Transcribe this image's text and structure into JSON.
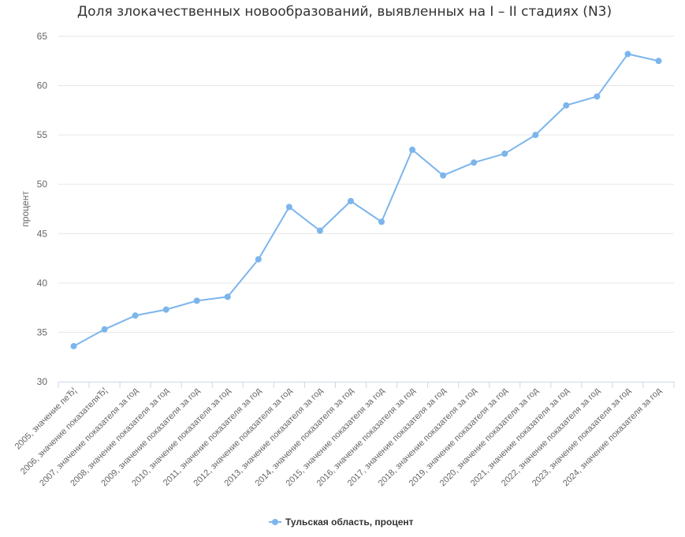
{
  "chart_data": {
    "type": "line",
    "title": "Доля злокачественных новообразований, выявленных на I – II стадиях (N3)",
    "ylabel": "процент",
    "xlabel": "",
    "ylim": [
      30,
      65
    ],
    "yticks": [
      30,
      35,
      40,
      45,
      50,
      55,
      60,
      65
    ],
    "grid": true,
    "legend_position": "bottom-center",
    "categories": [
      "2005, значение пеЂ¦",
      "2006, значение показателяЂ¦",
      "2007, значение показателя за год",
      "2008, значение показателя за год",
      "2009, значение показателя за год",
      "2010, значение показателя за год",
      "2011, значение показателя за год",
      "2012, значение показателя за год",
      "2013, значение показателя за год",
      "2014, значение показателя за год",
      "2015, значение показателя за год",
      "2016, значение показателя за год",
      "2017, значение показателя за год",
      "2018, значение показателя за год",
      "2019, значение показателя за год",
      "2020, значение показателя за год",
      "2021, значение показателя за год",
      "2022, значение показателя за год",
      "2023, значение показателя за год",
      "2024, значение показателя за год"
    ],
    "series": [
      {
        "name": "Тульская область, процент",
        "color": "#7cb5ec",
        "values": [
          33.6,
          35.3,
          36.7,
          37.3,
          38.2,
          38.6,
          42.4,
          47.7,
          45.3,
          48.3,
          46.2,
          53.5,
          50.9,
          52.2,
          53.1,
          55.0,
          58.0,
          58.9,
          63.2,
          62.5
        ]
      }
    ]
  }
}
